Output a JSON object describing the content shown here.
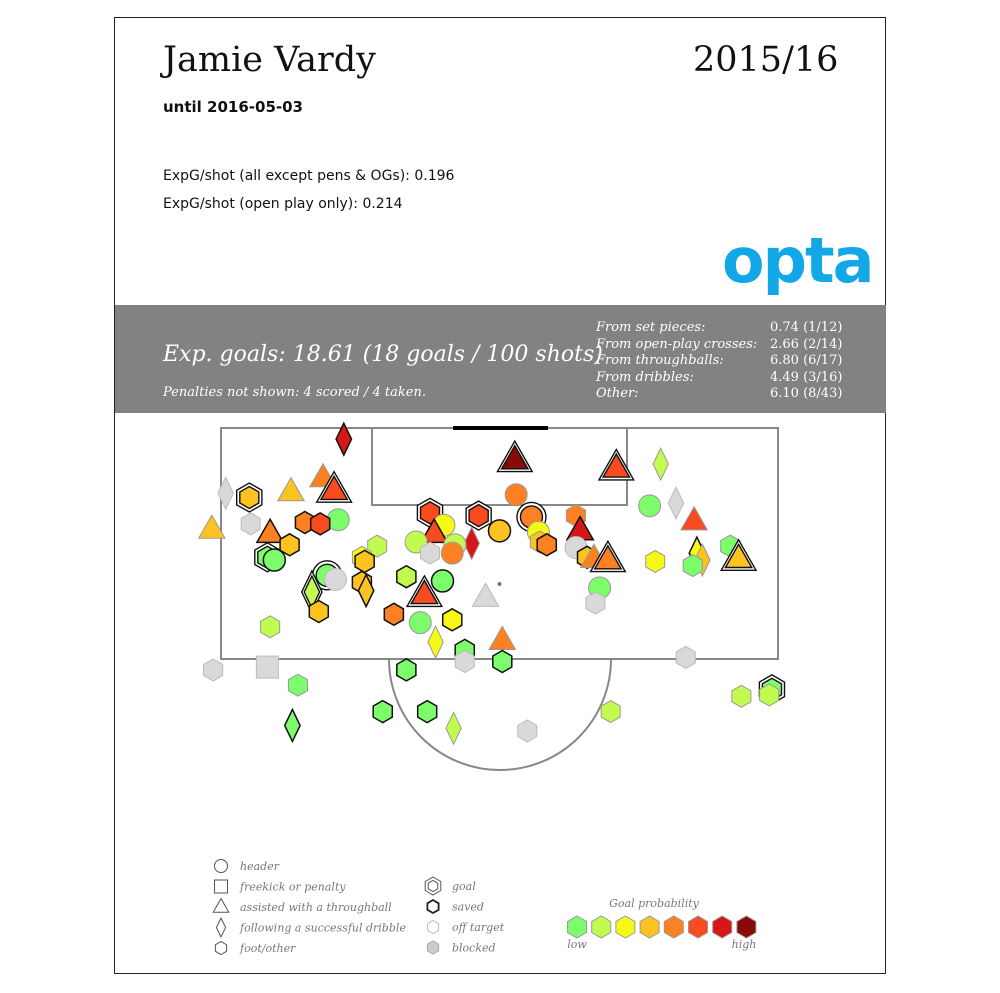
{
  "header": {
    "player": "Jamie Vardy",
    "season": "2015/16",
    "until": "until 2016-05-03",
    "stat_all": "ExpG/shot (all except pens & OGs): 0.196",
    "stat_open": "ExpG/shot (open play only): 0.214",
    "logo_text": "opta"
  },
  "summary": {
    "exp_goals": "Exp. goals: 18.61 (18 goals / 100 shots)",
    "penalties": "Penalties not shown: 4 scored / 4 taken.",
    "breakdown": [
      {
        "label": "From set pieces:",
        "value": "0.74 (1/12)"
      },
      {
        "label": "From open-play crosses:",
        "value": "2.66 (2/14)"
      },
      {
        "label": "From throughballs:",
        "value": "6.80 (6/17)"
      },
      {
        "label": "From dribbles:",
        "value": "4.49 (3/16)"
      },
      {
        "label": "Other:",
        "value": "6.10 (8/43)"
      }
    ]
  },
  "legend": {
    "shape_items": [
      {
        "shape": "circle",
        "label": "header"
      },
      {
        "shape": "square",
        "label": "freekick or penalty"
      },
      {
        "shape": "triangle",
        "label": "assisted with a throughball"
      },
      {
        "shape": "diamond",
        "label": "following a successful dribble"
      },
      {
        "shape": "hexagon",
        "label": "foot/other"
      }
    ],
    "outcome_items": [
      {
        "outcome": "goal",
        "label": "goal"
      },
      {
        "outcome": "saved",
        "label": "saved"
      },
      {
        "outcome": "off",
        "label": "off target"
      },
      {
        "outcome": "blocked",
        "label": "blocked"
      }
    ],
    "scale_title": "Goal probability",
    "scale_low": "low",
    "scale_high": "high",
    "scale_colors": [
      "#7dfc6c",
      "#c2fb4f",
      "#f6f816",
      "#fcc21f",
      "#fd8122",
      "#f84b20",
      "#d7161a",
      "#8a0a0a"
    ]
  },
  "chart_data": {
    "type": "scatter",
    "title": "Jamie Vardy",
    "coordinate_system": "pitch units: x = metres from centre of goal line (left negative), y = metres from goal line",
    "outcome_styles": {
      "goal": "double black outline",
      "saved": "single black outline",
      "off": "grey outline",
      "blocked": "grey fill"
    },
    "probability_levels": [
      1,
      2,
      3,
      4,
      5,
      6,
      7,
      8
    ],
    "shots": [
      {
        "x": -11.2,
        "y": 0.8,
        "shape": "diamond",
        "outcome": "saved",
        "level": 7
      },
      {
        "x": 1.1,
        "y": 2.3,
        "shape": "triangle",
        "outcome": "goal",
        "level": 8
      },
      {
        "x": 8.4,
        "y": 2.9,
        "shape": "triangle",
        "outcome": "goal",
        "level": 6
      },
      {
        "x": 11.6,
        "y": 2.6,
        "shape": "diamond",
        "outcome": "off",
        "level": 2
      },
      {
        "x": -12.7,
        "y": 3.6,
        "shape": "triangle",
        "outcome": "off",
        "level": 5
      },
      {
        "x": -11.9,
        "y": 4.5,
        "shape": "triangle",
        "outcome": "goal",
        "level": 6
      },
      {
        "x": -15.0,
        "y": 4.6,
        "shape": "triangle",
        "outcome": "off",
        "level": 4
      },
      {
        "x": -19.7,
        "y": 4.7,
        "shape": "diamond",
        "outcome": "blocked",
        "level": 0
      },
      {
        "x": -18.0,
        "y": 5.0,
        "shape": "hexagon",
        "outcome": "goal",
        "level": 4
      },
      {
        "x": 1.2,
        "y": 4.8,
        "shape": "circle",
        "outcome": "off",
        "level": 5
      },
      {
        "x": 12.7,
        "y": 5.4,
        "shape": "diamond",
        "outcome": "blocked",
        "level": 0
      },
      {
        "x": 10.8,
        "y": 5.6,
        "shape": "circle",
        "outcome": "off",
        "level": 1
      },
      {
        "x": -5.0,
        "y": 6.1,
        "shape": "hexagon",
        "outcome": "goal",
        "level": 6
      },
      {
        "x": -1.5,
        "y": 6.3,
        "shape": "hexagon",
        "outcome": "goal",
        "level": 6
      },
      {
        "x": 2.3,
        "y": 6.4,
        "shape": "circle",
        "outcome": "goal",
        "level": 5
      },
      {
        "x": 5.5,
        "y": 6.3,
        "shape": "hexagon",
        "outcome": "off",
        "level": 5
      },
      {
        "x": -11.6,
        "y": 6.6,
        "shape": "circle",
        "outcome": "off",
        "level": 1
      },
      {
        "x": -14.0,
        "y": 6.8,
        "shape": "hexagon",
        "outcome": "saved",
        "level": 5
      },
      {
        "x": -12.9,
        "y": 6.9,
        "shape": "hexagon",
        "outcome": "saved",
        "level": 6
      },
      {
        "x": -4.0,
        "y": 7.0,
        "shape": "circle",
        "outcome": "off",
        "level": 3
      },
      {
        "x": 0.0,
        "y": 7.4,
        "shape": "circle",
        "outcome": "saved",
        "level": 4
      },
      {
        "x": 2.8,
        "y": 7.5,
        "shape": "circle",
        "outcome": "off",
        "level": 3
      },
      {
        "x": 5.8,
        "y": 7.4,
        "shape": "triangle",
        "outcome": "saved",
        "level": 7
      },
      {
        "x": 14.0,
        "y": 6.7,
        "shape": "triangle",
        "outcome": "off",
        "level": 6
      },
      {
        "x": -17.9,
        "y": 6.9,
        "shape": "hexagon",
        "outcome": "blocked",
        "level": 0
      },
      {
        "x": -20.7,
        "y": 7.3,
        "shape": "triangle",
        "outcome": "off",
        "level": 4
      },
      {
        "x": -16.5,
        "y": 7.6,
        "shape": "triangle",
        "outcome": "saved",
        "level": 5
      },
      {
        "x": -4.7,
        "y": 7.6,
        "shape": "triangle",
        "outcome": "saved",
        "level": 6
      },
      {
        "x": -2.0,
        "y": 8.3,
        "shape": "diamond",
        "outcome": "off",
        "level": 7
      },
      {
        "x": -6.0,
        "y": 8.2,
        "shape": "circle",
        "outcome": "off",
        "level": 2
      },
      {
        "x": -3.2,
        "y": 8.4,
        "shape": "circle",
        "outcome": "off",
        "level": 2
      },
      {
        "x": -15.1,
        "y": 8.4,
        "shape": "hexagon",
        "outcome": "saved",
        "level": 4
      },
      {
        "x": -8.8,
        "y": 8.5,
        "shape": "hexagon",
        "outcome": "off",
        "level": 2
      },
      {
        "x": 2.9,
        "y": 8.2,
        "shape": "hexagon",
        "outcome": "off",
        "level": 4
      },
      {
        "x": 3.4,
        "y": 8.4,
        "shape": "hexagon",
        "outcome": "saved",
        "level": 5
      },
      {
        "x": 5.5,
        "y": 8.6,
        "shape": "circle",
        "outcome": "blocked",
        "level": 0
      },
      {
        "x": 16.6,
        "y": 8.5,
        "shape": "hexagon",
        "outcome": "off",
        "level": 1
      },
      {
        "x": -5.0,
        "y": 9.0,
        "shape": "hexagon",
        "outcome": "blocked",
        "level": 0
      },
      {
        "x": -3.4,
        "y": 9.0,
        "shape": "circle",
        "outcome": "off",
        "level": 5
      },
      {
        "x": 6.3,
        "y": 9.3,
        "shape": "hexagon",
        "outcome": "saved",
        "level": 4
      },
      {
        "x": 14.2,
        "y": 9.0,
        "shape": "diamond",
        "outcome": "saved",
        "level": 3
      },
      {
        "x": 14.6,
        "y": 9.5,
        "shape": "diamond",
        "outcome": "off",
        "level": 4
      },
      {
        "x": 17.2,
        "y": 9.4,
        "shape": "triangle",
        "outcome": "goal",
        "level": 4
      },
      {
        "x": -16.7,
        "y": 9.3,
        "shape": "hexagon",
        "outcome": "goal",
        "level": 1
      },
      {
        "x": -16.2,
        "y": 9.5,
        "shape": "circle",
        "outcome": "saved",
        "level": 1
      },
      {
        "x": -9.9,
        "y": 9.3,
        "shape": "hexagon",
        "outcome": "off",
        "level": 3
      },
      {
        "x": -9.7,
        "y": 9.6,
        "shape": "hexagon",
        "outcome": "saved",
        "level": 4
      },
      {
        "x": 6.8,
        "y": 9.4,
        "shape": "triangle",
        "outcome": "off",
        "level": 5
      },
      {
        "x": 7.8,
        "y": 9.5,
        "shape": "triangle",
        "outcome": "goal",
        "level": 5
      },
      {
        "x": 11.2,
        "y": 9.6,
        "shape": "hexagon",
        "outcome": "off",
        "level": 3
      },
      {
        "x": 13.9,
        "y": 9.9,
        "shape": "hexagon",
        "outcome": "off",
        "level": 1
      },
      {
        "x": -12.4,
        "y": 10.6,
        "shape": "circle",
        "outcome": "goal",
        "level": 1
      },
      {
        "x": -11.8,
        "y": 10.9,
        "shape": "circle",
        "outcome": "blocked",
        "level": 0
      },
      {
        "x": -9.9,
        "y": 11.1,
        "shape": "hexagon",
        "outcome": "saved",
        "level": 4
      },
      {
        "x": -6.7,
        "y": 10.7,
        "shape": "hexagon",
        "outcome": "saved",
        "level": 2
      },
      {
        "x": -4.1,
        "y": 11.0,
        "shape": "circle",
        "outcome": "saved",
        "level": 1
      },
      {
        "x": -13.5,
        "y": 11.8,
        "shape": "diamond",
        "outcome": "goal",
        "level": 2
      },
      {
        "x": -9.6,
        "y": 11.7,
        "shape": "diamond",
        "outcome": "saved",
        "level": 4
      },
      {
        "x": -5.4,
        "y": 12.0,
        "shape": "triangle",
        "outcome": "goal",
        "level": 6
      },
      {
        "x": -1.0,
        "y": 12.2,
        "shape": "triangle",
        "outcome": "blocked",
        "level": 0
      },
      {
        "x": 7.2,
        "y": 11.5,
        "shape": "circle",
        "outcome": "off",
        "level": 1
      },
      {
        "x": 6.9,
        "y": 12.6,
        "shape": "hexagon",
        "outcome": "blocked",
        "level": 0
      },
      {
        "x": -13.0,
        "y": 13.2,
        "shape": "hexagon",
        "outcome": "saved",
        "level": 4
      },
      {
        "x": -7.6,
        "y": 13.4,
        "shape": "hexagon",
        "outcome": "saved",
        "level": 5
      },
      {
        "x": -5.7,
        "y": 14.0,
        "shape": "circle",
        "outcome": "off",
        "level": 1
      },
      {
        "x": -3.4,
        "y": 13.8,
        "shape": "hexagon",
        "outcome": "saved",
        "level": 3
      },
      {
        "x": -16.5,
        "y": 14.3,
        "shape": "hexagon",
        "outcome": "off",
        "level": 2
      },
      {
        "x": -4.6,
        "y": 15.4,
        "shape": "diamond",
        "outcome": "off",
        "level": 3
      },
      {
        "x": 0.2,
        "y": 15.3,
        "shape": "triangle",
        "outcome": "off",
        "level": 5
      },
      {
        "x": -2.5,
        "y": 16.0,
        "shape": "hexagon",
        "outcome": "saved",
        "level": 1
      },
      {
        "x": -2.5,
        "y": 16.8,
        "shape": "hexagon",
        "outcome": "blocked",
        "level": 0
      },
      {
        "x": 0.2,
        "y": 16.8,
        "shape": "hexagon",
        "outcome": "saved",
        "level": 1
      },
      {
        "x": -6.7,
        "y": 17.4,
        "shape": "hexagon",
        "outcome": "saved",
        "level": 1
      },
      {
        "x": -20.6,
        "y": 17.4,
        "shape": "hexagon",
        "outcome": "blocked",
        "level": 0
      },
      {
        "x": -16.7,
        "y": 17.2,
        "shape": "square",
        "outcome": "blocked",
        "level": 0
      },
      {
        "x": 13.4,
        "y": 16.5,
        "shape": "hexagon",
        "outcome": "blocked",
        "level": 0
      },
      {
        "x": -14.5,
        "y": 18.5,
        "shape": "hexagon",
        "outcome": "off",
        "level": 1
      },
      {
        "x": 19.6,
        "y": 18.8,
        "shape": "hexagon",
        "outcome": "goal",
        "level": 1
      },
      {
        "x": 19.4,
        "y": 19.2,
        "shape": "hexagon",
        "outcome": "off",
        "level": 2
      },
      {
        "x": 17.4,
        "y": 19.3,
        "shape": "hexagon",
        "outcome": "off",
        "level": 2
      },
      {
        "x": -8.4,
        "y": 20.4,
        "shape": "hexagon",
        "outcome": "saved",
        "level": 1
      },
      {
        "x": -5.2,
        "y": 20.4,
        "shape": "hexagon",
        "outcome": "saved",
        "level": 1
      },
      {
        "x": 8.0,
        "y": 20.4,
        "shape": "hexagon",
        "outcome": "off",
        "level": 2
      },
      {
        "x": -14.9,
        "y": 21.4,
        "shape": "diamond",
        "outcome": "saved",
        "level": 1
      },
      {
        "x": -3.3,
        "y": 21.6,
        "shape": "diamond",
        "outcome": "off",
        "level": 2
      },
      {
        "x": 2.0,
        "y": 21.8,
        "shape": "hexagon",
        "outcome": "blocked",
        "level": 0
      }
    ]
  }
}
